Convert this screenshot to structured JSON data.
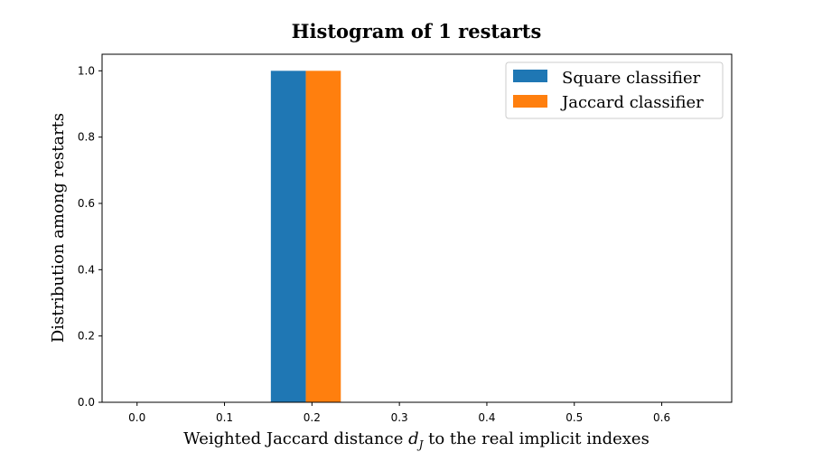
{
  "chart_data": {
    "type": "bar",
    "title": "Histogram of 1 restarts",
    "xlabel_prefix": "Weighted Jaccard distance ",
    "xlabel_var": "d",
    "xlabel_sub": "J",
    "xlabel_suffix": " to the real implicit indexes",
    "ylabel": "Distribution among restarts",
    "xlim": [
      -0.04,
      0.68
    ],
    "ylim": [
      0.0,
      1.05
    ],
    "xticks": [
      "0.0",
      "0.1",
      "0.2",
      "0.3",
      "0.4",
      "0.5",
      "0.6"
    ],
    "yticks": [
      "0.0",
      "0.2",
      "0.4",
      "0.6",
      "0.8",
      "1.0"
    ],
    "legend_position": "top-right",
    "series": [
      {
        "name": "Square classifier",
        "color": "#1f77b4",
        "bars": [
          {
            "x0": 0.153,
            "x1": 0.193,
            "value": 1.0
          }
        ]
      },
      {
        "name": "Jaccard classifier",
        "color": "#ff7f0e",
        "bars": [
          {
            "x0": 0.193,
            "x1": 0.233,
            "value": 1.0
          }
        ]
      }
    ]
  }
}
